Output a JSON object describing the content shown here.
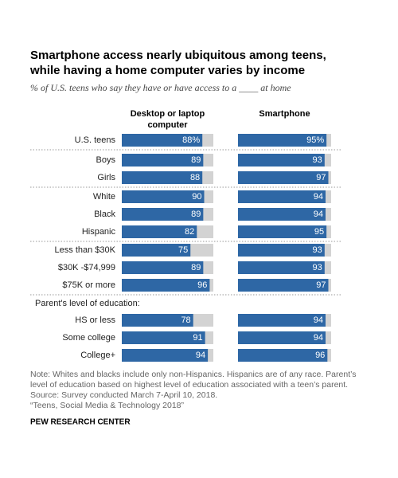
{
  "chart_data": {
    "type": "bar",
    "title": [
      "Smartphone access nearly ubiquitous among teens,",
      "while having a home computer varies by income"
    ],
    "subtitle": "% of U.S. teens who say they have or have access to a ____ at home",
    "categories": [
      "U.S. teens",
      "Boys",
      "Girls",
      "White",
      "Black",
      "Hispanic",
      "Less than $30K",
      "$30K -$74,999",
      "$75K or more",
      "HS or less",
      "Some college",
      "College+"
    ],
    "annotation": "Parent's level of education:",
    "xlim": [
      0,
      100
    ],
    "background_color": "#d3d3d3",
    "series": [
      {
        "name": "Desktop or laptop computer",
        "color": "#2e67a5",
        "values": [
          88,
          89,
          88,
          90,
          89,
          82,
          75,
          89,
          96,
          78,
          91,
          94
        ],
        "value_labels": [
          "88%",
          "89",
          "88",
          "90",
          "89",
          "82",
          "75",
          "89",
          "96",
          "78",
          "91",
          "94"
        ]
      },
      {
        "name": "Smartphone",
        "color": "#2e67a5",
        "values": [
          95,
          93,
          97,
          94,
          94,
          95,
          93,
          93,
          97,
          94,
          94,
          96
        ],
        "value_labels": [
          "95%",
          "93",
          "97",
          "94",
          "94",
          "95",
          "93",
          "93",
          "97",
          "94",
          "94",
          "96"
        ]
      }
    ],
    "note": [
      "Note: Whites and blacks include only non-Hispanics. Hispanics are of any race. Parent’s",
      "level of education based on highest level of education associated with a teen’s parent.",
      "Source: Survey conducted March 7-April 10, 2018.",
      "“Teens, Social Media & Technology 2018”"
    ],
    "source": "PEW RESEARCH CENTER"
  }
}
